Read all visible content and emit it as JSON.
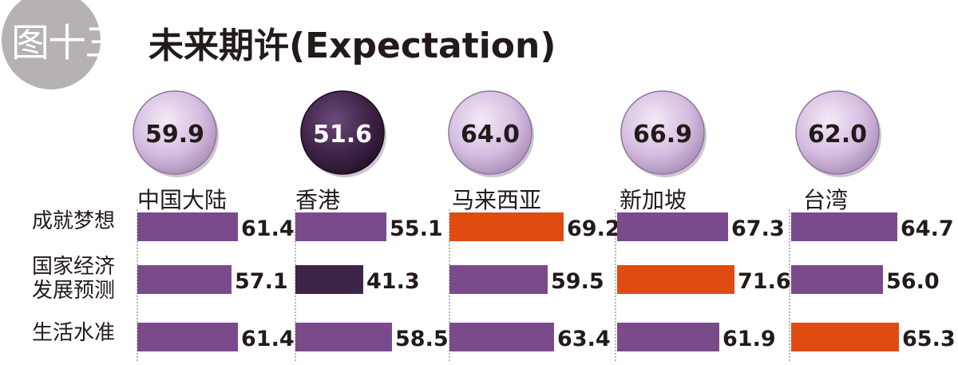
{
  "badge": "图十三",
  "title": "未来期许(Expectation)",
  "colors": {
    "bar": "#7b4a8b",
    "bar_low": "#3e2446",
    "bar_high": "#e04b12",
    "bubble": "#d8bfe2",
    "bubble_dark": "#3a1f45",
    "text": "#231a1a"
  },
  "chart_data": {
    "type": "bar",
    "regions": [
      {
        "name": "中国大陆",
        "overall": 59.9,
        "overall_highlight": false,
        "values": [
          61.4,
          57.1,
          61.4
        ],
        "highlight": [
          "",
          "",
          ""
        ]
      },
      {
        "name": "香港",
        "overall": 51.6,
        "overall_highlight": true,
        "values": [
          55.1,
          41.3,
          58.5
        ],
        "highlight": [
          "",
          "low",
          ""
        ]
      },
      {
        "name": "马来西亚",
        "overall": 64.0,
        "overall_highlight": false,
        "values": [
          69.2,
          59.5,
          63.4
        ],
        "highlight": [
          "high",
          "",
          ""
        ]
      },
      {
        "name": "新加坡",
        "overall": 66.9,
        "overall_highlight": false,
        "values": [
          67.3,
          71.6,
          61.9
        ],
        "highlight": [
          "",
          "high",
          ""
        ]
      },
      {
        "name": "台湾",
        "overall": 62.0,
        "overall_highlight": false,
        "values": [
          64.7,
          56.0,
          65.3
        ],
        "highlight": [
          "",
          "",
          "high"
        ]
      }
    ],
    "categories": [
      "成就梦想",
      "国家经济\n发展预测",
      "生活水准"
    ]
  }
}
